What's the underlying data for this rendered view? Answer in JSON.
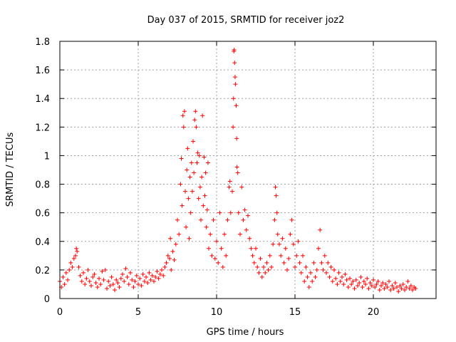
{
  "chart_data": {
    "type": "scatter",
    "title": "Day 037 of 2015, SRMTID for receiver joz2",
    "xlabel": "GPS time / hours",
    "ylabel": "SRMTID / TECUs",
    "xlim": [
      0,
      24
    ],
    "ylim": [
      0,
      1.8
    ],
    "x_ticks": [
      "0",
      "5",
      "10",
      "15",
      "20"
    ],
    "y_ticks": [
      "0",
      "0.2",
      "0.4",
      "0.6",
      "0.8",
      "1",
      "1.2",
      "1.4",
      "1.6",
      "1.8"
    ],
    "x_tick_values": [
      0,
      5,
      10,
      15,
      20
    ],
    "y_tick_values": [
      0,
      0.2,
      0.4,
      0.6,
      0.8,
      1.0,
      1.2,
      1.4,
      1.6,
      1.8
    ],
    "grid": true,
    "marker": "+",
    "series_color": "#ff0000",
    "series": [
      {
        "name": "SRMTID",
        "points": [
          [
            0.0,
            0.12
          ],
          [
            0.1,
            0.08
          ],
          [
            0.2,
            0.15
          ],
          [
            0.3,
            0.1
          ],
          [
            0.4,
            0.18
          ],
          [
            0.5,
            0.13
          ],
          [
            0.6,
            0.2
          ],
          [
            0.7,
            0.25
          ],
          [
            0.8,
            0.22
          ],
          [
            0.9,
            0.28
          ],
          [
            1.0,
            0.3
          ],
          [
            1.05,
            0.35
          ],
          [
            1.1,
            0.33
          ],
          [
            1.2,
            0.22
          ],
          [
            1.3,
            0.16
          ],
          [
            1.4,
            0.12
          ],
          [
            1.5,
            0.18
          ],
          [
            1.6,
            0.1
          ],
          [
            1.7,
            0.14
          ],
          [
            1.8,
            0.2
          ],
          [
            1.9,
            0.12
          ],
          [
            2.0,
            0.09
          ],
          [
            2.1,
            0.15
          ],
          [
            2.2,
            0.17
          ],
          [
            2.3,
            0.11
          ],
          [
            2.4,
            0.08
          ],
          [
            2.5,
            0.14
          ],
          [
            2.6,
            0.1
          ],
          [
            2.7,
            0.19
          ],
          [
            2.8,
            0.13
          ],
          [
            2.9,
            0.2
          ],
          [
            3.0,
            0.07
          ],
          [
            3.1,
            0.12
          ],
          [
            3.2,
            0.09
          ],
          [
            3.3,
            0.15
          ],
          [
            3.4,
            0.1
          ],
          [
            3.5,
            0.06
          ],
          [
            3.6,
            0.13
          ],
          [
            3.7,
            0.11
          ],
          [
            3.8,
            0.08
          ],
          [
            3.9,
            0.14
          ],
          [
            4.0,
            0.17
          ],
          [
            4.1,
            0.12
          ],
          [
            4.2,
            0.21
          ],
          [
            4.3,
            0.15
          ],
          [
            4.4,
            0.1
          ],
          [
            4.5,
            0.18
          ],
          [
            4.6,
            0.13
          ],
          [
            4.7,
            0.08
          ],
          [
            4.8,
            0.12
          ],
          [
            4.9,
            0.16
          ],
          [
            5.0,
            0.1
          ],
          [
            5.1,
            0.14
          ],
          [
            5.2,
            0.09
          ],
          [
            5.3,
            0.17
          ],
          [
            5.4,
            0.12
          ],
          [
            5.5,
            0.15
          ],
          [
            5.6,
            0.11
          ],
          [
            5.7,
            0.18
          ],
          [
            5.8,
            0.13
          ],
          [
            5.9,
            0.16
          ],
          [
            6.0,
            0.12
          ],
          [
            6.1,
            0.15
          ],
          [
            6.2,
            0.19
          ],
          [
            6.3,
            0.14
          ],
          [
            6.4,
            0.17
          ],
          [
            6.5,
            0.2
          ],
          [
            6.6,
            0.16
          ],
          [
            6.7,
            0.22
          ],
          [
            6.8,
            0.25
          ],
          [
            6.9,
            0.3
          ],
          [
            7.0,
            0.28
          ],
          [
            7.05,
            0.42
          ],
          [
            7.1,
            0.2
          ],
          [
            7.2,
            0.33
          ],
          [
            7.3,
            0.27
          ],
          [
            7.4,
            0.38
          ],
          [
            7.5,
            0.55
          ],
          [
            7.6,
            0.45
          ],
          [
            7.7,
            0.8
          ],
          [
            7.75,
            0.98
          ],
          [
            7.8,
            0.65
          ],
          [
            7.85,
            1.28
          ],
          [
            7.9,
            1.2
          ],
          [
            7.95,
            1.31
          ],
          [
            8.0,
            0.75
          ],
          [
            8.05,
            0.5
          ],
          [
            8.1,
            0.9
          ],
          [
            8.15,
            1.05
          ],
          [
            8.2,
            0.7
          ],
          [
            8.25,
            0.42
          ],
          [
            8.3,
            0.85
          ],
          [
            8.35,
            0.6
          ],
          [
            8.4,
            0.95
          ],
          [
            8.45,
            0.75
          ],
          [
            8.5,
            1.1
          ],
          [
            8.55,
            0.88
          ],
          [
            8.6,
            1.25
          ],
          [
            8.65,
            1.31
          ],
          [
            8.7,
            1.2
          ],
          [
            8.75,
            0.95
          ],
          [
            8.8,
            1.02
          ],
          [
            8.85,
            0.7
          ],
          [
            8.9,
            1.0
          ],
          [
            8.95,
            0.78
          ],
          [
            9.0,
            0.55
          ],
          [
            9.05,
            0.85
          ],
          [
            9.1,
            1.28
          ],
          [
            9.15,
            0.65
          ],
          [
            9.2,
            0.99
          ],
          [
            9.25,
            0.72
          ],
          [
            9.3,
            0.88
          ],
          [
            9.35,
            0.5
          ],
          [
            9.4,
            0.62
          ],
          [
            9.45,
            0.95
          ],
          [
            9.5,
            0.35
          ],
          [
            9.6,
            0.45
          ],
          [
            9.7,
            0.3
          ],
          [
            9.8,
            0.55
          ],
          [
            9.9,
            0.28
          ],
          [
            10.0,
            0.4
          ],
          [
            10.1,
            0.25
          ],
          [
            10.2,
            0.6
          ],
          [
            10.3,
            0.35
          ],
          [
            10.4,
            0.22
          ],
          [
            10.5,
            0.45
          ],
          [
            10.6,
            0.3
          ],
          [
            10.7,
            0.55
          ],
          [
            10.8,
            0.78
          ],
          [
            10.85,
            0.82
          ],
          [
            10.9,
            0.6
          ],
          [
            11.0,
            0.75
          ],
          [
            11.05,
            1.2
          ],
          [
            11.08,
            1.4
          ],
          [
            11.1,
            1.73
          ],
          [
            11.12,
            1.74
          ],
          [
            11.15,
            1.65
          ],
          [
            11.18,
            1.55
          ],
          [
            11.2,
            1.5
          ],
          [
            11.25,
            1.35
          ],
          [
            11.28,
            1.12
          ],
          [
            11.3,
            0.92
          ],
          [
            11.35,
            0.88
          ],
          [
            11.4,
            0.6
          ],
          [
            11.5,
            0.45
          ],
          [
            11.6,
            0.78
          ],
          [
            11.7,
            0.55
          ],
          [
            11.8,
            0.62
          ],
          [
            11.9,
            0.48
          ],
          [
            12.0,
            0.58
          ],
          [
            12.1,
            0.42
          ],
          [
            12.2,
            0.35
          ],
          [
            12.3,
            0.3
          ],
          [
            12.4,
            0.25
          ],
          [
            12.5,
            0.35
          ],
          [
            12.6,
            0.22
          ],
          [
            12.7,
            0.18
          ],
          [
            12.8,
            0.28
          ],
          [
            12.9,
            0.15
          ],
          [
            13.0,
            0.22
          ],
          [
            13.1,
            0.18
          ],
          [
            13.2,
            0.25
          ],
          [
            13.3,
            0.2
          ],
          [
            13.4,
            0.3
          ],
          [
            13.5,
            0.22
          ],
          [
            13.6,
            0.38
          ],
          [
            13.7,
            0.55
          ],
          [
            13.75,
            0.78
          ],
          [
            13.8,
            0.72
          ],
          [
            13.85,
            0.6
          ],
          [
            13.9,
            0.45
          ],
          [
            14.0,
            0.38
          ],
          [
            14.1,
            0.3
          ],
          [
            14.2,
            0.42
          ],
          [
            14.3,
            0.25
          ],
          [
            14.4,
            0.35
          ],
          [
            14.5,
            0.2
          ],
          [
            14.6,
            0.28
          ],
          [
            14.7,
            0.45
          ],
          [
            14.8,
            0.55
          ],
          [
            14.9,
            0.38
          ],
          [
            15.0,
            0.22
          ],
          [
            15.1,
            0.3
          ],
          [
            15.2,
            0.4
          ],
          [
            15.3,
            0.25
          ],
          [
            15.4,
            0.18
          ],
          [
            15.5,
            0.3
          ],
          [
            15.6,
            0.12
          ],
          [
            15.7,
            0.22
          ],
          [
            15.8,
            0.15
          ],
          [
            15.9,
            0.08
          ],
          [
            16.0,
            0.18
          ],
          [
            16.1,
            0.12
          ],
          [
            16.2,
            0.25
          ],
          [
            16.3,
            0.15
          ],
          [
            16.4,
            0.2
          ],
          [
            16.5,
            0.35
          ],
          [
            16.6,
            0.48
          ],
          [
            16.7,
            0.25
          ],
          [
            16.8,
            0.2
          ],
          [
            16.9,
            0.3
          ],
          [
            17.0,
            0.18
          ],
          [
            17.1,
            0.25
          ],
          [
            17.2,
            0.15
          ],
          [
            17.3,
            0.22
          ],
          [
            17.4,
            0.12
          ],
          [
            17.5,
            0.2
          ],
          [
            17.6,
            0.14
          ],
          [
            17.7,
            0.1
          ],
          [
            17.8,
            0.18
          ],
          [
            17.9,
            0.12
          ],
          [
            18.0,
            0.15
          ],
          [
            18.1,
            0.1
          ],
          [
            18.2,
            0.17
          ],
          [
            18.3,
            0.13
          ],
          [
            18.4,
            0.08
          ],
          [
            18.5,
            0.14
          ],
          [
            18.6,
            0.1
          ],
          [
            18.7,
            0.12
          ],
          [
            18.8,
            0.07
          ],
          [
            18.9,
            0.13
          ],
          [
            19.0,
            0.09
          ],
          [
            19.1,
            0.11
          ],
          [
            19.2,
            0.15
          ],
          [
            19.3,
            0.08
          ],
          [
            19.4,
            0.12
          ],
          [
            19.5,
            0.1
          ],
          [
            19.6,
            0.14
          ],
          [
            19.7,
            0.07
          ],
          [
            19.8,
            0.11
          ],
          [
            19.9,
            0.09
          ],
          [
            20.0,
            0.13
          ],
          [
            20.1,
            0.08
          ],
          [
            20.2,
            0.1
          ],
          [
            20.3,
            0.12
          ],
          [
            20.4,
            0.06
          ],
          [
            20.5,
            0.09
          ],
          [
            20.6,
            0.11
          ],
          [
            20.7,
            0.07
          ],
          [
            20.8,
            0.1
          ],
          [
            20.9,
            0.08
          ],
          [
            21.0,
            0.12
          ],
          [
            21.1,
            0.06
          ],
          [
            21.2,
            0.09
          ],
          [
            21.3,
            0.07
          ],
          [
            21.4,
            0.11
          ],
          [
            21.5,
            0.08
          ],
          [
            21.6,
            0.05
          ],
          [
            21.7,
            0.09
          ],
          [
            21.8,
            0.07
          ],
          [
            21.9,
            0.1
          ],
          [
            22.0,
            0.06
          ],
          [
            22.1,
            0.08
          ],
          [
            22.2,
            0.12
          ],
          [
            22.3,
            0.07
          ],
          [
            22.4,
            0.09
          ],
          [
            22.5,
            0.06
          ],
          [
            22.6,
            0.08
          ],
          [
            22.7,
            0.07
          ]
        ]
      }
    ]
  }
}
